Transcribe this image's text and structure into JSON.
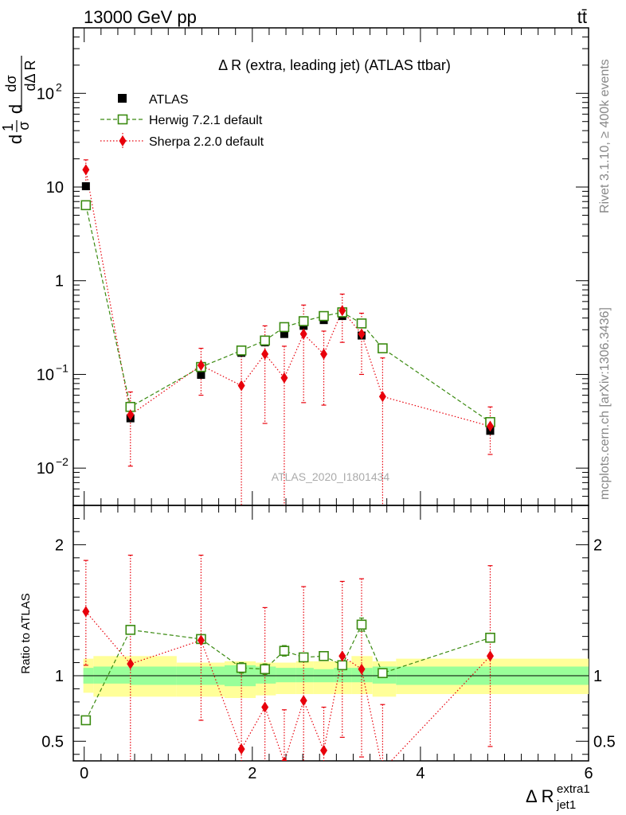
{
  "header": {
    "left": "13000 GeV pp",
    "right": "tt̄"
  },
  "side_texts": {
    "rivet": "Rivet 3.1.10, ≥ 400k events",
    "mcplots": "mcplots.cern.ch [arXiv:1306.3436]"
  },
  "colors": {
    "atlas": "#000000",
    "herwig": "#3a8a10",
    "sherpa": "#e8000b",
    "band_inner": "#99ff99",
    "band_outer": "#ffff99"
  },
  "chart_data": [
    {
      "type": "scatter",
      "title": "Δ R (extra, leading jet) (ATLAS ttbar)",
      "analysis_tag": "ATLAS_2020_I1801434",
      "ylabel": "1/σ dσ/dΔR (extra1, jet1)",
      "yscale": "log",
      "ylim": [
        0.004,
        500
      ],
      "xlim": [
        -0.13,
        6.0
      ],
      "y_ticks": [
        {
          "value": 0.01,
          "label": "10",
          "sup": "−2"
        },
        {
          "value": 0.1,
          "label": "10",
          "sup": "−1"
        },
        {
          "value": 1,
          "label": "1",
          "sup": ""
        },
        {
          "value": 10,
          "label": "10",
          "sup": ""
        },
        {
          "value": 100,
          "label": "10",
          "sup": "2"
        }
      ],
      "legend_position": "top-left",
      "legend": [
        {
          "key": "atlas",
          "label": "ATLAS"
        },
        {
          "key": "herwig",
          "label": "Herwig 7.2.1 default"
        },
        {
          "key": "sherpa",
          "label": "Sherpa 2.2.0 default"
        }
      ],
      "series": [
        {
          "key": "atlas",
          "name": "ATLAS",
          "marker": "square",
          "x": [
            0.02,
            0.55,
            1.39,
            1.87,
            2.15,
            2.38,
            2.61,
            2.85,
            3.07,
            3.3,
            3.55,
            4.83
          ],
          "y": [
            10.2,
            0.034,
            0.099,
            0.17,
            0.22,
            0.27,
            0.33,
            0.38,
            0.42,
            0.26,
            0.19,
            0.025
          ]
        },
        {
          "key": "herwig",
          "name": "Herwig 7.2.1 default",
          "marker": "open-square",
          "line": "dashed",
          "x": [
            0.02,
            0.55,
            1.39,
            1.87,
            2.15,
            2.38,
            2.61,
            2.85,
            3.07,
            3.3,
            3.55,
            4.83
          ],
          "y": [
            6.4,
            0.045,
            0.12,
            0.18,
            0.23,
            0.32,
            0.37,
            0.42,
            0.46,
            0.35,
            0.19,
            0.031
          ],
          "err_lo": [
            0,
            0,
            0,
            0.012,
            0.02,
            0.02,
            0.02,
            0.02,
            0.02,
            0.02,
            0.012,
            0
          ],
          "err_hi": [
            0,
            0,
            0,
            0.012,
            0.02,
            0.02,
            0.02,
            0.02,
            0.02,
            0.02,
            0.012,
            0
          ]
        },
        {
          "key": "sherpa",
          "name": "Sherpa 2.2.0 default",
          "marker": "diamond",
          "line": "dotted",
          "x": [
            0.02,
            0.55,
            1.39,
            1.87,
            2.15,
            2.38,
            2.61,
            2.85,
            3.07,
            3.3,
            3.55,
            4.83
          ],
          "y": [
            15.3,
            0.037,
            0.125,
            0.076,
            0.165,
            0.092,
            0.27,
            0.165,
            0.48,
            0.27,
            0.058,
            0.028
          ],
          "y_lo": [
            11.0,
            0.0105,
            0.06,
            0.003,
            0.03,
            0.003,
            0.05,
            0.047,
            0.22,
            0.1,
            0.003,
            0.014
          ],
          "y_hi": [
            19.5,
            0.065,
            0.19,
            0.18,
            0.33,
            0.2,
            0.55,
            0.29,
            0.72,
            0.45,
            0.15,
            0.045
          ]
        }
      ]
    },
    {
      "type": "scatter",
      "ylabel": "Ratio to ATLAS",
      "xlabel": "Δ R (extra1, jet1)",
      "ylim": [
        0.35,
        2.3
      ],
      "xlim": [
        -0.13,
        6.0
      ],
      "x_ticks": [
        0,
        2,
        4,
        6
      ],
      "y_ticks": [
        0.5,
        1,
        2
      ],
      "reference_line": 1,
      "band": {
        "edges": [
          -0.01,
          0.11,
          0.55,
          1.1,
          1.67,
          2.04,
          2.28,
          2.52,
          2.73,
          2.97,
          3.18,
          3.43,
          3.71,
          6.0
        ],
        "inner_lo": [
          0.94,
          0.94,
          0.93,
          0.93,
          0.92,
          0.94,
          0.95,
          0.95,
          0.95,
          0.95,
          0.95,
          0.94,
          0.93
        ],
        "inner_hi": [
          1.06,
          1.07,
          1.07,
          1.07,
          1.08,
          1.07,
          1.06,
          1.06,
          1.05,
          1.06,
          1.06,
          1.07,
          1.07
        ],
        "outer_lo": [
          0.87,
          0.84,
          0.84,
          0.84,
          0.83,
          0.85,
          0.86,
          0.86,
          0.86,
          0.86,
          0.86,
          0.84,
          0.86
        ],
        "outer_hi": [
          1.13,
          1.15,
          1.15,
          1.1,
          1.11,
          1.1,
          1.1,
          1.11,
          1.11,
          1.11,
          1.15,
          1.11,
          1.13
        ]
      },
      "series": [
        {
          "key": "herwig",
          "name": "Herwig 7.2.1 default",
          "marker": "open-square",
          "line": "dashed",
          "x": [
            0.02,
            0.55,
            1.39,
            1.87,
            2.15,
            2.38,
            2.61,
            2.85,
            3.07,
            3.3,
            3.55,
            4.83
          ],
          "y": [
            0.66,
            1.35,
            1.28,
            1.06,
            1.05,
            1.19,
            1.14,
            1.15,
            1.08,
            1.39,
            1.02,
            1.29
          ],
          "err": [
            0,
            0.02,
            0.02,
            0.04,
            0.04,
            0.04,
            0.03,
            0.03,
            0.03,
            0.05,
            0.03,
            0.03
          ]
        },
        {
          "key": "sherpa",
          "name": "Sherpa 2.2.0 default",
          "marker": "diamond",
          "line": "dotted",
          "x": [
            0.02,
            0.55,
            1.39,
            1.87,
            2.15,
            2.38,
            2.61,
            2.85,
            3.07,
            3.3,
            3.55,
            4.83
          ],
          "y": [
            1.49,
            1.09,
            1.27,
            0.44,
            0.76,
            0.34,
            0.81,
            0.43,
            1.15,
            1.05,
            0.28,
            1.15
          ],
          "y_lo": [
            1.08,
            0.34,
            0.66,
            0.2,
            0.16,
            0.2,
            0.2,
            0.12,
            0.53,
            0.38,
            0.2,
            0.46
          ],
          "y_hi": [
            1.88,
            1.92,
            1.92,
            1.08,
            1.52,
            0.74,
            1.68,
            0.76,
            1.72,
            1.74,
            0.78,
            1.84
          ]
        }
      ]
    }
  ]
}
